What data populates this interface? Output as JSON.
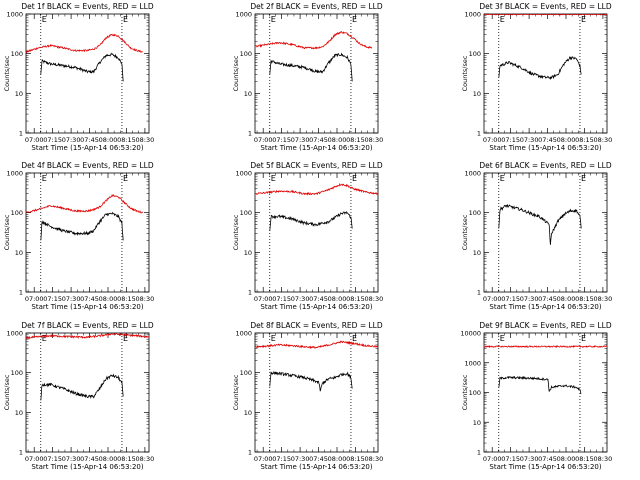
{
  "colors": {
    "events": "#000000",
    "lld": "#e00000",
    "axes": "#000000",
    "background": "#ffffff"
  },
  "ylabel": "Counts/sec",
  "xlabel": "Start Time (15-Apr-14 06:53:20)",
  "x_tick_labels": [
    "07:00",
    "07:15",
    "07:30",
    "07:45",
    "08:00",
    "08:15",
    "08:30"
  ],
  "y_tick_labels": [
    "1",
    "10",
    "100",
    "1000"
  ],
  "y_tick_labels_det9": [
    "1",
    "10",
    "100",
    "1000",
    "10000"
  ],
  "marker_label": "E",
  "chart_data": [
    {
      "type": "line",
      "title": "Det 1f BLACK = Events, RED = LLD",
      "x_unit": "minutes after 06:53:20",
      "xlim": [
        0,
        100
      ],
      "ylim": [
        1,
        1000
      ],
      "y_scale": "log",
      "vlines": [
        12,
        78
      ],
      "series": [
        {
          "name": "Events",
          "color": "#000000",
          "x": [
            12,
            13,
            20,
            30,
            40,
            45,
            50,
            55,
            60,
            65,
            70,
            75,
            78,
            79
          ],
          "y": [
            30,
            65,
            55,
            50,
            45,
            40,
            35,
            35,
            60,
            90,
            95,
            80,
            55,
            20
          ]
        },
        {
          "name": "LLD",
          "color": "#e00000",
          "x": [
            0,
            10,
            20,
            30,
            40,
            50,
            55,
            60,
            65,
            70,
            75,
            80,
            85,
            90,
            95
          ],
          "y": [
            110,
            140,
            160,
            140,
            120,
            120,
            130,
            160,
            250,
            300,
            280,
            200,
            140,
            120,
            110
          ]
        }
      ]
    },
    {
      "type": "line",
      "title": "Det 2f BLACK = Events, RED = LLD",
      "x_unit": "minutes after 06:53:20",
      "xlim": [
        0,
        100
      ],
      "ylim": [
        1,
        1000
      ],
      "y_scale": "log",
      "vlines": [
        12,
        78
      ],
      "series": [
        {
          "name": "Events",
          "color": "#000000",
          "x": [
            12,
            13,
            20,
            30,
            40,
            45,
            50,
            55,
            60,
            65,
            70,
            75,
            78,
            79
          ],
          "y": [
            30,
            65,
            55,
            50,
            45,
            40,
            35,
            35,
            60,
            90,
            95,
            80,
            55,
            20
          ]
        },
        {
          "name": "LLD",
          "color": "#e00000",
          "x": [
            0,
            10,
            20,
            30,
            40,
            50,
            55,
            60,
            65,
            70,
            75,
            80,
            85,
            90,
            95
          ],
          "y": [
            150,
            170,
            190,
            170,
            140,
            140,
            150,
            200,
            300,
            350,
            320,
            250,
            180,
            150,
            140
          ]
        }
      ]
    },
    {
      "type": "line",
      "title": "Det 3f BLACK = Events, RED = LLD",
      "x_unit": "minutes after 06:53:20",
      "xlim": [
        0,
        100
      ],
      "ylim": [
        1,
        1000
      ],
      "y_scale": "log",
      "vlines": [
        12,
        78
      ],
      "series": [
        {
          "name": "Events",
          "color": "#000000",
          "x": [
            12,
            13,
            20,
            30,
            40,
            50,
            55,
            60,
            65,
            70,
            75,
            78,
            79
          ],
          "y": [
            25,
            50,
            60,
            45,
            30,
            25,
            25,
            30,
            55,
            80,
            75,
            50,
            30
          ]
        },
        {
          "name": "LLD",
          "color": "#e00000",
          "x": [
            0,
            25,
            50,
            75,
            100
          ],
          "y": [
            1000,
            1000,
            1000,
            1000,
            1000
          ]
        }
      ]
    },
    {
      "type": "line",
      "title": "Det 4f BLACK = Events, RED = LLD",
      "x_unit": "minutes after 06:53:20",
      "xlim": [
        0,
        100
      ],
      "ylim": [
        1,
        1000
      ],
      "y_scale": "log",
      "vlines": [
        12,
        78
      ],
      "series": [
        {
          "name": "Events",
          "color": "#000000",
          "x": [
            12,
            13,
            20,
            30,
            40,
            45,
            50,
            55,
            60,
            65,
            70,
            75,
            78,
            79
          ],
          "y": [
            20,
            60,
            45,
            35,
            30,
            30,
            30,
            35,
            60,
            90,
            95,
            80,
            55,
            20
          ]
        },
        {
          "name": "LLD",
          "color": "#e00000",
          "x": [
            0,
            10,
            20,
            30,
            40,
            50,
            55,
            60,
            65,
            70,
            75,
            80,
            85,
            90,
            95
          ],
          "y": [
            100,
            120,
            150,
            130,
            110,
            110,
            120,
            140,
            200,
            270,
            250,
            180,
            130,
            110,
            100
          ]
        }
      ]
    },
    {
      "type": "line",
      "title": "Det 5f BLACK = Events, RED = LLD",
      "x_unit": "minutes after 06:53:20",
      "xlim": [
        0,
        100
      ],
      "ylim": [
        1,
        1000
      ],
      "y_scale": "log",
      "vlines": [
        12,
        78
      ],
      "series": [
        {
          "name": "Events",
          "color": "#000000",
          "x": [
            12,
            13,
            20,
            30,
            40,
            50,
            55,
            60,
            65,
            70,
            75,
            78,
            79
          ],
          "y": [
            35,
            80,
            80,
            70,
            55,
            50,
            55,
            60,
            75,
            95,
            100,
            75,
            40
          ]
        },
        {
          "name": "LLD",
          "color": "#e00000",
          "x": [
            0,
            10,
            20,
            30,
            40,
            50,
            60,
            65,
            70,
            75,
            80,
            90,
            100
          ],
          "y": [
            300,
            320,
            350,
            340,
            300,
            300,
            380,
            450,
            520,
            480,
            400,
            330,
            300
          ]
        }
      ]
    },
    {
      "type": "line",
      "title": "Det 6f BLACK = Events, RED = LLD",
      "x_unit": "minutes after 06:53:20",
      "xlim": [
        0,
        100
      ],
      "ylim": [
        1,
        1000
      ],
      "y_scale": "log",
      "vlines": [
        12,
        78
      ],
      "series": [
        {
          "name": "Events",
          "color": "#000000",
          "x": [
            12,
            13,
            18,
            22,
            30,
            40,
            45,
            53,
            54,
            55,
            60,
            65,
            70,
            75,
            78,
            79
          ],
          "y": [
            40,
            120,
            150,
            140,
            120,
            90,
            80,
            50,
            15,
            30,
            60,
            90,
            110,
            115,
            80,
            40
          ]
        }
      ]
    },
    {
      "type": "line",
      "title": "Det 7f BLACK = Events, RED = LLD",
      "x_unit": "minutes after 06:53:20",
      "xlim": [
        0,
        100
      ],
      "ylim": [
        1,
        1000
      ],
      "y_scale": "log",
      "vlines": [
        12,
        78
      ],
      "series": [
        {
          "name": "Events",
          "color": "#000000",
          "x": [
            12,
            13,
            20,
            30,
            40,
            50,
            55,
            60,
            65,
            70,
            75,
            78,
            79
          ],
          "y": [
            20,
            50,
            50,
            40,
            30,
            25,
            25,
            40,
            70,
            85,
            75,
            55,
            25
          ]
        },
        {
          "name": "LLD",
          "color": "#e00000",
          "x": [
            0,
            10,
            20,
            30,
            40,
            50,
            60,
            70,
            80,
            90,
            100
          ],
          "y": [
            750,
            800,
            850,
            820,
            800,
            780,
            850,
            950,
            900,
            850,
            800
          ]
        }
      ]
    },
    {
      "type": "line",
      "title": "Det 8f BLACK = Events, RED = LLD",
      "x_unit": "minutes after 06:53:20",
      "xlim": [
        0,
        100
      ],
      "ylim": [
        1,
        1000
      ],
      "y_scale": "log",
      "vlines": [
        12,
        78
      ],
      "series": [
        {
          "name": "Events",
          "color": "#000000",
          "x": [
            12,
            13,
            20,
            30,
            40,
            50,
            52,
            53,
            55,
            60,
            65,
            70,
            75,
            78,
            79
          ],
          "y": [
            45,
            100,
            95,
            85,
            75,
            60,
            55,
            35,
            55,
            70,
            75,
            90,
            95,
            75,
            40
          ]
        },
        {
          "name": "LLD",
          "color": "#e00000",
          "x": [
            0,
            10,
            20,
            30,
            40,
            50,
            60,
            70,
            80,
            90,
            100
          ],
          "y": [
            450,
            470,
            500,
            480,
            450,
            430,
            500,
            600,
            550,
            480,
            450
          ]
        }
      ]
    },
    {
      "type": "line",
      "title": "Det 9f BLACK = Events, RED = LLD",
      "x_unit": "minutes after 06:53:20",
      "xlim": [
        0,
        100
      ],
      "ylim": [
        1,
        10000
      ],
      "y_scale": "log",
      "vlines": [
        12,
        78
      ],
      "series": [
        {
          "name": "Events",
          "color": "#000000",
          "x": [
            12,
            13,
            20,
            30,
            40,
            50,
            52,
            53,
            55,
            60,
            65,
            70,
            75,
            78,
            79
          ],
          "y": [
            150,
            300,
            320,
            310,
            300,
            280,
            270,
            110,
            150,
            160,
            170,
            160,
            150,
            120,
            90
          ]
        },
        {
          "name": "LLD",
          "color": "#e00000",
          "x": [
            0,
            25,
            50,
            75,
            100
          ],
          "y": [
            3500,
            3500,
            3500,
            3500,
            3500
          ]
        }
      ]
    }
  ]
}
